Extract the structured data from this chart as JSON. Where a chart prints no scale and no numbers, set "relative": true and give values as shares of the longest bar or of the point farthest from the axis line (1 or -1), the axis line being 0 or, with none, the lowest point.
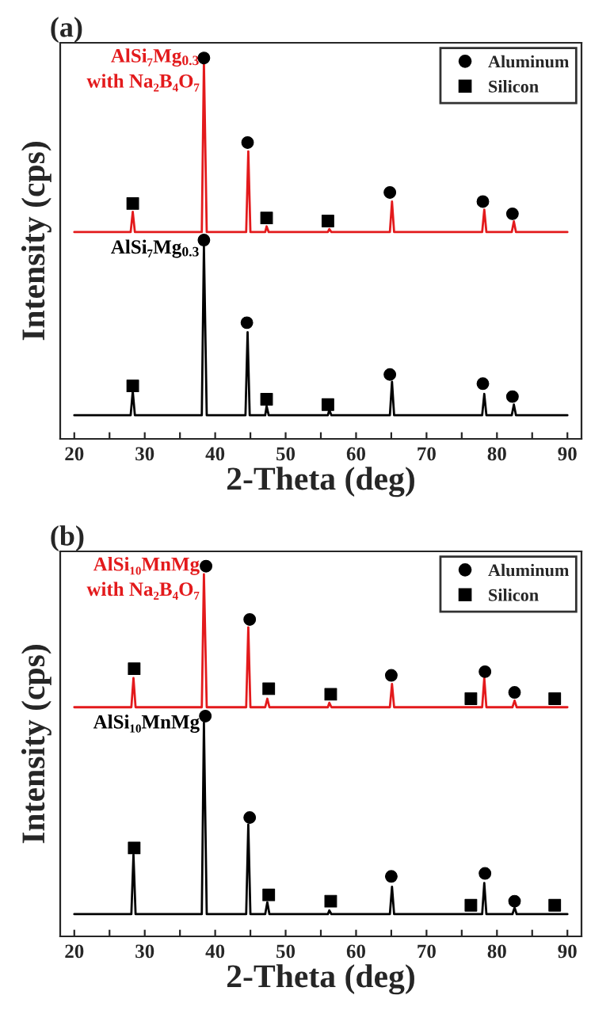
{
  "chart_data": [
    {
      "type": "line",
      "title": "(a)",
      "xlabel": "2-Theta (deg)",
      "ylabel": "Intensity (cps)",
      "relative": true,
      "legend": "top right",
      "grid": false,
      "tick_labels": "x",
      "xlim": [
        18,
        92
      ],
      "xticks": [
        20,
        {
          "value": 25,
          "label": null
        },
        30,
        {
          "value": 35,
          "label": null
        },
        40,
        {
          "value": 45,
          "label": null
        },
        50,
        {
          "value": 55,
          "label": null
        },
        60,
        {
          "value": 65,
          "label": null
        },
        70,
        {
          "value": 75,
          "label": null
        },
        80,
        {
          "value": 85,
          "label": null
        },
        90
      ],
      "series": [
        {
          "name": "AlSi₇Mg$_{0.3}$\nwith Na₂B₄O₇",
          "color": "#e31a1c",
          "x": [
            20,
            28.0,
            28.3,
            28.6,
            38.1,
            38.4,
            38.8,
            44.4,
            44.7,
            45.0,
            47.1,
            47.3,
            47.6,
            56.0,
            56.2,
            56.5,
            64.8,
            65.1,
            65.4,
            77.9,
            78.2,
            78.5,
            82.1,
            82.4,
            82.7,
            90
          ],
          "values": [
            0.543,
            0.543,
            0.596,
            0.543,
            0.543,
            0.99,
            0.543,
            0.543,
            0.755,
            0.543,
            0.543,
            0.558,
            0.543,
            0.543,
            0.551,
            0.543,
            0.543,
            0.623,
            0.543,
            0.543,
            0.602,
            0.543,
            0.543,
            0.571,
            0.543,
            0.543
          ]
        },
        {
          "name": "AlSi₇Mg$_{0.3}$",
          "color": "#000000",
          "x": [
            20,
            28.0,
            28.3,
            28.6,
            38.1,
            38.4,
            38.8,
            44.3,
            44.6,
            44.9,
            47.1,
            47.3,
            47.6,
            56.0,
            56.2,
            56.5,
            64.8,
            65.1,
            65.4,
            77.9,
            78.2,
            78.5,
            82.1,
            82.4,
            82.7,
            90
          ],
          "values": [
            0.062,
            0.062,
            0.125,
            0.062,
            0.062,
            0.506,
            0.062,
            0.062,
            0.28,
            0.062,
            0.062,
            0.086,
            0.062,
            0.062,
            0.076,
            0.062,
            0.062,
            0.15,
            0.062,
            0.062,
            0.118,
            0.062,
            0.062,
            0.09,
            0.062,
            0.062
          ]
        },
        {
          "type": "scatter",
          "name": "Aluminum",
          "marker": "circle",
          "color": "#000000",
          "x": [
            38.4,
            44.6,
            64.8,
            78.0,
            82.2,
            38.4,
            44.5,
            64.8,
            78.0,
            82.2
          ],
          "values": [
            1.0,
            0.778,
            0.647,
            0.623,
            0.591,
            0.522,
            0.305,
            0.169,
            0.145,
            0.111
          ]
        },
        {
          "type": "scatter",
          "name": "Silicon",
          "marker": "square",
          "color": "#000000",
          "x": [
            28.3,
            47.3,
            56.0,
            28.3,
            47.3,
            56.0
          ],
          "values": [
            0.618,
            0.58,
            0.572,
            0.139,
            0.104,
            0.09
          ]
        }
      ]
    },
    {
      "type": "line",
      "title": "(b)",
      "xlabel": "2-Theta (deg)",
      "ylabel": "Intensity (cps)",
      "relative": true,
      "legend": "top right",
      "grid": false,
      "tick_labels": "x",
      "xlim": [
        18,
        92
      ],
      "xticks": [
        20,
        {
          "value": 25,
          "label": null
        },
        30,
        {
          "value": 35,
          "label": null
        },
        40,
        {
          "value": 45,
          "label": null
        },
        50,
        {
          "value": 55,
          "label": null
        },
        60,
        {
          "value": 65,
          "label": null
        },
        70,
        {
          "value": 75,
          "label": null
        },
        80,
        {
          "value": 85,
          "label": null
        },
        90
      ],
      "series": [
        {
          "name": "AlSi₁₀MnMg\nwith Na₂B₄O₇",
          "color": "#e31a1c",
          "x": [
            20,
            28.1,
            28.4,
            28.7,
            38.1,
            38.4,
            38.8,
            44.4,
            44.7,
            45.0,
            47.1,
            47.4,
            47.7,
            56.0,
            56.2,
            56.5,
            64.8,
            65.1,
            65.4,
            77.9,
            78.2,
            78.5,
            82.2,
            82.5,
            82.8,
            90
          ],
          "values": [
            0.619,
            0.619,
            0.698,
            0.619,
            0.619,
            0.978,
            0.619,
            0.619,
            0.835,
            0.619,
            0.619,
            0.642,
            0.619,
            0.619,
            0.631,
            0.619,
            0.619,
            0.682,
            0.619,
            0.619,
            0.698,
            0.619,
            0.619,
            0.637,
            0.619,
            0.619
          ]
        },
        {
          "name": "AlSi₁₀MnMg",
          "color": "#000000",
          "x": [
            20,
            28.1,
            28.4,
            28.7,
            38.1,
            38.4,
            38.8,
            44.4,
            44.7,
            45.0,
            47.1,
            47.4,
            47.7,
            56.0,
            56.2,
            56.5,
            64.8,
            65.1,
            65.4,
            77.9,
            78.2,
            78.5,
            82.2,
            82.5,
            82.8,
            90
          ],
          "values": [
            0.06,
            0.06,
            0.221,
            0.06,
            0.06,
            0.577,
            0.06,
            0.06,
            0.302,
            0.06,
            0.06,
            0.092,
            0.06,
            0.06,
            0.07,
            0.06,
            0.06,
            0.134,
            0.06,
            0.06,
            0.144,
            0.06,
            0.06,
            0.078,
            0.06,
            0.06
          ]
        },
        {
          "type": "scatter",
          "name": "Aluminum",
          "marker": "circle",
          "color": "#000000",
          "x": [
            38.7,
            44.9,
            65.0,
            78.3,
            82.5,
            38.6,
            44.9,
            65.0,
            78.3,
            82.5
          ],
          "values": [
            1.0,
            0.856,
            0.705,
            0.715,
            0.659,
            0.595,
            0.321,
            0.162,
            0.17,
            0.095
          ]
        },
        {
          "type": "scatter",
          "name": "Silicon",
          "marker": "square",
          "color": "#000000",
          "x": [
            28.5,
            47.6,
            56.4,
            76.3,
            88.2,
            28.5,
            47.6,
            56.4,
            76.3,
            88.2
          ],
          "values": [
            0.723,
            0.669,
            0.654,
            0.642,
            0.642,
            0.239,
            0.112,
            0.095,
            0.084,
            0.084
          ]
        }
      ]
    }
  ]
}
